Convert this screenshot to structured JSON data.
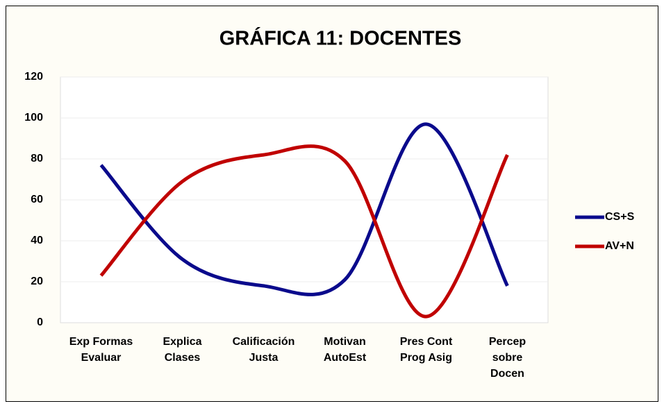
{
  "chart_data": {
    "type": "line",
    "title": "GRÁFICA 11: DOCENTES",
    "categories": [
      "Exp Formas\nEvaluar",
      "Explica\nClases",
      "Calificación\nJusta",
      "Motivan\nAutoEst",
      "Pres Cont\nProg Asig",
      "Percep\nsobre\nDocen"
    ],
    "series": [
      {
        "name": "CS+S",
        "color": "#0a0a8c",
        "values": [
          77,
          31,
          18,
          21,
          97,
          18
        ]
      },
      {
        "name": "AV+N",
        "color": "#c00000",
        "values": [
          23,
          69,
          82,
          79,
          3,
          82
        ]
      }
    ],
    "ylim": [
      0,
      120
    ],
    "yticks": [
      0,
      20,
      40,
      60,
      80,
      100,
      120
    ],
    "grid": true,
    "smooth": true,
    "legend": "right"
  }
}
